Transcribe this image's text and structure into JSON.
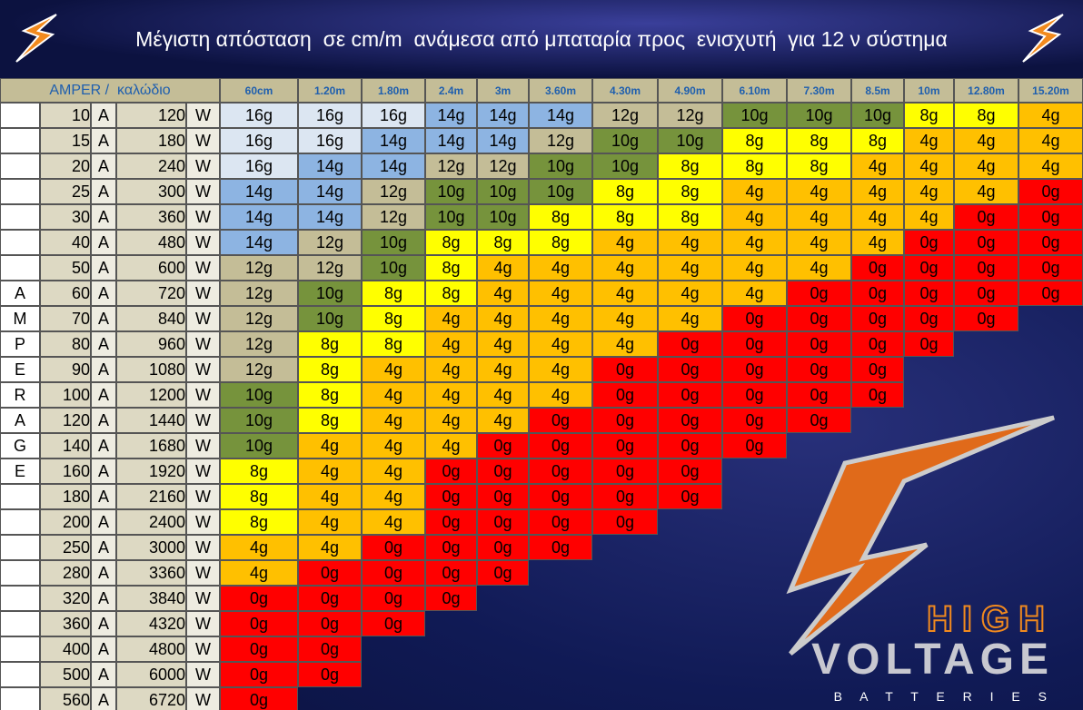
{
  "header": {
    "title": "Μέγιστη απόσταση  σε cm/m  ανάμεσα από μπαταρία προς  ενισχυτή  για 12 ν σύστημα"
  },
  "table": {
    "corner_label": "AMPER /  καλώδιο",
    "columns": [
      "60cm",
      "1.20m",
      "1.80m",
      "2.4m",
      "3m",
      "3.60m",
      "4.30m",
      "4.90m",
      "6.10m",
      "7.30m",
      "8.5m",
      "10m",
      "12.80m",
      "15.20m"
    ],
    "amp_unit": "A",
    "watt_unit": "W",
    "gauge_colors": {
      "16g": "#dce6f2",
      "14g": "#8db4e2",
      "12g": "#c4bd97",
      "10g": "#76933c",
      "8g": "#ffff00",
      "4g": "#ffc000",
      "0g": "#ff0000"
    },
    "rows": [
      {
        "amps": 10,
        "watts": 120,
        "cells": [
          "16g",
          "16g",
          "16g",
          "14g",
          "14g",
          "14g",
          "12g",
          "12g",
          "10g",
          "10g",
          "10g",
          "8g",
          "8g",
          "4g"
        ]
      },
      {
        "amps": 15,
        "watts": 180,
        "cells": [
          "16g",
          "16g",
          "14g",
          "14g",
          "14g",
          "12g",
          "10g",
          "10g",
          "8g",
          "8g",
          "8g",
          "4g",
          "4g",
          "4g"
        ]
      },
      {
        "amps": 20,
        "watts": 240,
        "cells": [
          "16g",
          "14g",
          "14g",
          "12g",
          "12g",
          "10g",
          "10g",
          "8g",
          "8g",
          "8g",
          "4g",
          "4g",
          "4g",
          "4g"
        ]
      },
      {
        "amps": 25,
        "watts": 300,
        "cells": [
          "14g",
          "14g",
          "12g",
          "10g",
          "10g",
          "10g",
          "8g",
          "8g",
          "4g",
          "4g",
          "4g",
          "4g",
          "4g",
          "0g"
        ]
      },
      {
        "amps": 30,
        "watts": 360,
        "cells": [
          "14g",
          "14g",
          "12g",
          "10g",
          "10g",
          "8g",
          "8g",
          "8g",
          "4g",
          "4g",
          "4g",
          "4g",
          "0g",
          "0g"
        ]
      },
      {
        "amps": 40,
        "watts": 480,
        "cells": [
          "14g",
          "12g",
          "10g",
          "8g",
          "8g",
          "8g",
          "4g",
          "4g",
          "4g",
          "4g",
          "4g",
          "0g",
          "0g",
          "0g"
        ]
      },
      {
        "amps": 50,
        "watts": 600,
        "cells": [
          "12g",
          "12g",
          "10g",
          "8g",
          "4g",
          "4g",
          "4g",
          "4g",
          "4g",
          "4g",
          "0g",
          "0g",
          "0g",
          "0g"
        ]
      },
      {
        "side": "A",
        "amps": 60,
        "watts": 720,
        "cells": [
          "12g",
          "10g",
          "8g",
          "8g",
          "4g",
          "4g",
          "4g",
          "4g",
          "4g",
          "0g",
          "0g",
          "0g",
          "0g",
          "0g"
        ]
      },
      {
        "side": "M",
        "amps": 70,
        "watts": 840,
        "cells": [
          "12g",
          "10g",
          "8g",
          "4g",
          "4g",
          "4g",
          "4g",
          "4g",
          "0g",
          "0g",
          "0g",
          "0g",
          "0g"
        ]
      },
      {
        "side": "P",
        "amps": 80,
        "watts": 960,
        "cells": [
          "12g",
          "8g",
          "8g",
          "4g",
          "4g",
          "4g",
          "4g",
          "0g",
          "0g",
          "0g",
          "0g",
          "0g"
        ]
      },
      {
        "side": "E",
        "amps": 90,
        "watts": 1080,
        "cells": [
          "12g",
          "8g",
          "4g",
          "4g",
          "4g",
          "4g",
          "0g",
          "0g",
          "0g",
          "0g",
          "0g"
        ]
      },
      {
        "side": "R",
        "amps": 100,
        "watts": 1200,
        "cells": [
          "10g",
          "8g",
          "4g",
          "4g",
          "4g",
          "4g",
          "0g",
          "0g",
          "0g",
          "0g",
          "0g"
        ]
      },
      {
        "side": "A",
        "amps": 120,
        "watts": 1440,
        "cells": [
          "10g",
          "8g",
          "4g",
          "4g",
          "4g",
          "0g",
          "0g",
          "0g",
          "0g",
          "0g"
        ]
      },
      {
        "side": "G",
        "amps": 140,
        "watts": 1680,
        "cells": [
          "10g",
          "4g",
          "4g",
          "4g",
          "0g",
          "0g",
          "0g",
          "0g",
          "0g"
        ]
      },
      {
        "side": "E",
        "amps": 160,
        "watts": 1920,
        "cells": [
          "8g",
          "4g",
          "4g",
          "0g",
          "0g",
          "0g",
          "0g",
          "0g"
        ]
      },
      {
        "amps": 180,
        "watts": 2160,
        "cells": [
          "8g",
          "4g",
          "4g",
          "0g",
          "0g",
          "0g",
          "0g",
          "0g"
        ]
      },
      {
        "amps": 200,
        "watts": 2400,
        "cells": [
          "8g",
          "4g",
          "4g",
          "0g",
          "0g",
          "0g",
          "0g"
        ]
      },
      {
        "amps": 250,
        "watts": 3000,
        "cells": [
          "4g",
          "4g",
          "0g",
          "0g",
          "0g",
          "0g"
        ]
      },
      {
        "amps": 280,
        "watts": 3360,
        "cells": [
          "4g",
          "0g",
          "0g",
          "0g",
          "0g"
        ]
      },
      {
        "amps": 320,
        "watts": 3840,
        "cells": [
          "0g",
          "0g",
          "0g",
          "0g"
        ]
      },
      {
        "amps": 360,
        "watts": 4320,
        "cells": [
          "0g",
          "0g",
          "0g"
        ]
      },
      {
        "amps": 400,
        "watts": 4800,
        "cells": [
          "0g",
          "0g"
        ]
      },
      {
        "amps": 500,
        "watts": 6000,
        "cells": [
          "0g",
          "0g"
        ]
      },
      {
        "amps": 560,
        "watts": 6720,
        "cells": [
          "0g"
        ]
      }
    ]
  },
  "logo": {
    "line1": "HIGH",
    "line2": "VOLTAGE",
    "line3": "B A T T E R I E S"
  }
}
